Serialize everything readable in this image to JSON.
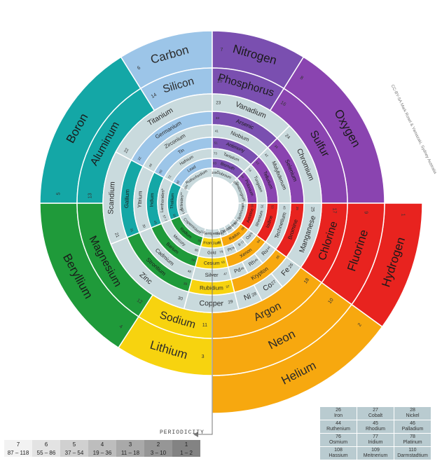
{
  "colors": {
    "group1": "#f7c10f",
    "group2": "#1f9a3a",
    "group13": "#14a7a6",
    "group14": "#9cc5e8",
    "group15": "#7a4fb0",
    "group16": "#8a44b0",
    "group17": "#e8231f",
    "group18": "#f7a80f",
    "transition": "#c9dadd",
    "ring_light": "#dfe9ea"
  },
  "rings": [
    {
      "id": "r1",
      "items": [
        {
          "symbol_name": "Hydrogen",
          "number": "1",
          "color": "#e8231f",
          "start": 90,
          "end": 126
        },
        {
          "symbol_name": "Helium",
          "number": "2",
          "color": "#f7a80f",
          "start": 126,
          "end": 180
        }
      ]
    },
    {
      "id": "r2",
      "items": [
        {
          "symbol_name": "Lithium",
          "number": "3",
          "color": "#f7d30f",
          "start": 180,
          "end": 213
        },
        {
          "symbol_name": "Beryllium",
          "number": "4",
          "color": "#1f9a3a",
          "start": 213,
          "end": 270
        },
        {
          "symbol_name": "Boron",
          "number": "5",
          "color": "#14a7a6",
          "start": 270,
          "end": 328
        },
        {
          "symbol_name": "Carbon",
          "number": "6",
          "color": "#9cc5e8",
          "start": 328,
          "end": 360
        },
        {
          "symbol_name": "Nitrogen",
          "number": "7",
          "color": "#7a4fb0",
          "start": 0,
          "end": 32
        },
        {
          "symbol_name": "Oxygen",
          "number": "8",
          "color": "#8a44b0",
          "start": 32,
          "end": 90
        },
        {
          "symbol_name": "Fluorine",
          "number": "9",
          "color": "#e8231f",
          "start": 90,
          "end": 126
        },
        {
          "symbol_name": "Neon",
          "number": "10",
          "color": "#f7a80f",
          "start": 126,
          "end": 180
        }
      ]
    },
    {
      "id": "r3",
      "items": [
        {
          "symbol_name": "Sodium",
          "number": "11",
          "color": "#f7d30f",
          "start": 180,
          "end": 213
        },
        {
          "symbol_name": "Magnesium",
          "number": "12",
          "color": "#1f9a3a",
          "start": 213,
          "end": 270
        },
        {
          "symbol_name": "Aluminum",
          "number": "13",
          "color": "#14a7a6",
          "start": 270,
          "end": 328
        },
        {
          "symbol_name": "Silicon",
          "number": "14",
          "color": "#9cc5e8",
          "start": 328,
          "end": 360
        },
        {
          "symbol_name": "Phosphorus",
          "number": "15",
          "color": "#7a4fb0",
          "start": 0,
          "end": 32
        },
        {
          "symbol_name": "Sulfur",
          "number": "16",
          "color": "#8a44b0",
          "start": 32,
          "end": 90
        },
        {
          "symbol_name": "Chlorine",
          "number": "17",
          "color": "#e8231f",
          "start": 90,
          "end": 126
        },
        {
          "symbol_name": "Argon",
          "number": "18",
          "color": "#f7a80f",
          "start": 126,
          "end": 180
        }
      ]
    },
    {
      "id": "r4",
      "items": [
        {
          "symbol_name": "Potassium",
          "number": "19",
          "color": "#f7d30f",
          "start": 180,
          "end": 213
        },
        {
          "symbol_name": "Calcium",
          "number": "20",
          "color": "#1f9a3a",
          "start": 213,
          "end": 248
        },
        {
          "symbol_name": "Scandium",
          "number": "21",
          "color": "#c9dadd",
          "start": 248,
          "end": 298
        },
        {
          "symbol_name": "Titanium",
          "number": "22",
          "color": "#c9dadd",
          "start": 298,
          "end": 360
        },
        {
          "symbol_name": "Vanadium",
          "number": "23",
          "color": "#c9dadd",
          "start": 0,
          "end": 45
        },
        {
          "symbol_name": "Chromium",
          "number": "24",
          "color": "#c9dadd",
          "start": 45,
          "end": 90
        },
        {
          "symbol_name": "Manganese",
          "number": "25",
          "color": "#c9dadd",
          "start": 90,
          "end": 126
        },
        {
          "symbol_name": "Fe",
          "number": "26",
          "color": "#c9dadd",
          "start": 126,
          "end": 140
        },
        {
          "symbol_name": "Co",
          "number": "27",
          "color": "#c9dadd",
          "start": 140,
          "end": 153
        },
        {
          "symbol_name": "Ni",
          "number": "28",
          "color": "#c9dadd",
          "start": 153,
          "end": 166
        },
        {
          "symbol_name": "Copper",
          "number": "29",
          "color": "#c9dadd",
          "start": 166,
          "end": 195
        },
        {
          "symbol_name": "Zinc",
          "number": "30",
          "color": "#c9dadd",
          "start": 195,
          "end": 248
        }
      ]
    },
    {
      "id": "r5",
      "items": [
        {
          "symbol_name": "Gallium",
          "number": "31",
          "color": "#14a7a6",
          "start": 248,
          "end": 298
        },
        {
          "symbol_name": "Germanium",
          "number": "32",
          "color": "#9cc5e8",
          "start": 298,
          "end": 360
        },
        {
          "symbol_name": "Arsenic",
          "number": "33",
          "color": "#7a4fb0",
          "start": 0,
          "end": 45
        },
        {
          "symbol_name": "Selenium",
          "number": "34",
          "color": "#8a44b0",
          "start": 45,
          "end": 90
        },
        {
          "symbol_name": "Bromine",
          "number": "35",
          "color": "#e8231f",
          "start": 90,
          "end": 126
        },
        {
          "symbol_name": "Krypton",
          "number": "36",
          "color": "#f7a80f",
          "start": 126,
          "end": 166
        },
        {
          "symbol_name": "Rubidium",
          "number": "37",
          "color": "#f7d30f",
          "start": 166,
          "end": 195
        },
        {
          "symbol_name": "Strontium",
          "number": "38",
          "color": "#1f9a3a",
          "start": 195,
          "end": 248
        }
      ]
    },
    {
      "id": "r6",
      "items": [
        {
          "symbol_name": "Yttrium",
          "number": "39",
          "color": "#c9dadd",
          "start": 248,
          "end": 298
        },
        {
          "symbol_name": "Zirconium",
          "number": "40",
          "color": "#c9dadd",
          "start": 298,
          "end": 360
        },
        {
          "symbol_name": "Niobium",
          "number": "41",
          "color": "#c9dadd",
          "start": 0,
          "end": 45
        },
        {
          "symbol_name": "Molybdenum",
          "number": "42",
          "color": "#c9dadd",
          "start": 45,
          "end": 90
        },
        {
          "symbol_name": "Technetium",
          "number": "43",
          "color": "#c9dadd",
          "start": 90,
          "end": 126
        },
        {
          "symbol_name": "Ru",
          "number": "44",
          "color": "#c9dadd",
          "start": 126,
          "end": 140
        },
        {
          "symbol_name": "Rh",
          "number": "45",
          "color": "#c9dadd",
          "start": 140,
          "end": 153
        },
        {
          "symbol_name": "Pd",
          "number": "46",
          "color": "#c9dadd",
          "start": 153,
          "end": 166
        },
        {
          "symbol_name": "Silver",
          "number": "47",
          "color": "#c9dadd",
          "start": 166,
          "end": 195
        },
        {
          "symbol_name": "Cadmium",
          "number": "48",
          "color": "#c9dadd",
          "start": 195,
          "end": 248
        }
      ]
    },
    {
      "id": "r7",
      "items": [
        {
          "symbol_name": "Indium",
          "number": "49",
          "color": "#14a7a6",
          "start": 248,
          "end": 298
        },
        {
          "symbol_name": "Tin",
          "number": "50",
          "color": "#9cc5e8",
          "start": 298,
          "end": 360
        },
        {
          "symbol_name": "Antimony",
          "number": "51",
          "color": "#7a4fb0",
          "start": 0,
          "end": 45
        },
        {
          "symbol_name": "Tellurium",
          "number": "52",
          "color": "#8a44b0",
          "start": 45,
          "end": 90
        },
        {
          "symbol_name": "Iodine",
          "number": "53",
          "color": "#e8231f",
          "start": 90,
          "end": 126
        },
        {
          "symbol_name": "Xenon",
          "number": "54",
          "color": "#f7a80f",
          "start": 126,
          "end": 166
        },
        {
          "symbol_name": "Cesium",
          "number": "55",
          "color": "#f7d30f",
          "start": 166,
          "end": 195
        },
        {
          "symbol_name": "Barium",
          "number": "56",
          "color": "#1f9a3a",
          "start": 195,
          "end": 248
        }
      ]
    },
    {
      "id": "r8",
      "items": [
        {
          "symbol_name": "Lanthanides*",
          "number": "57-71",
          "color": "#c9dadd",
          "start": 248,
          "end": 298
        },
        {
          "symbol_name": "Hafnium",
          "number": "72",
          "color": "#c9dadd",
          "start": 298,
          "end": 360
        },
        {
          "symbol_name": "Tantalum",
          "number": "73",
          "color": "#c9dadd",
          "start": 0,
          "end": 45
        },
        {
          "symbol_name": "Tungsten",
          "number": "74",
          "color": "#c9dadd",
          "start": 45,
          "end": 90
        },
        {
          "symbol_name": "Rhenium",
          "number": "75",
          "color": "#c9dadd",
          "start": 90,
          "end": 126
        },
        {
          "symbol_name": "Os",
          "number": "76",
          "color": "#c9dadd",
          "start": 126,
          "end": 140
        },
        {
          "symbol_name": "Ir",
          "number": "77",
          "color": "#c9dadd",
          "start": 140,
          "end": 153
        },
        {
          "symbol_name": "Pt",
          "number": "78",
          "color": "#c9dadd",
          "start": 153,
          "end": 166
        },
        {
          "symbol_name": "Gold",
          "number": "79",
          "color": "#c9dadd",
          "start": 166,
          "end": 195
        },
        {
          "symbol_name": "Mercury",
          "number": "80",
          "color": "#c9dadd",
          "start": 195,
          "end": 248
        }
      ]
    },
    {
      "id": "r9",
      "items": [
        {
          "symbol_name": "Thallium",
          "number": "81",
          "color": "#14a7a6",
          "start": 248,
          "end": 298
        },
        {
          "symbol_name": "Lead",
          "number": "82",
          "color": "#9cc5e8",
          "start": 298,
          "end": 360
        },
        {
          "symbol_name": "Bismuth",
          "number": "83",
          "color": "#7a4fb0",
          "start": 0,
          "end": 45
        },
        {
          "symbol_name": "Polonium",
          "number": "84",
          "color": "#8a44b0",
          "start": 45,
          "end": 90
        },
        {
          "symbol_name": "Astatine",
          "number": "85",
          "color": "#e8231f",
          "start": 90,
          "end": 126
        },
        {
          "symbol_name": "Radon",
          "number": "86",
          "color": "#f7a80f",
          "start": 126,
          "end": 166
        },
        {
          "symbol_name": "Francium",
          "number": "87",
          "color": "#f7d30f",
          "start": 166,
          "end": 195
        },
        {
          "symbol_name": "Radium",
          "number": "88",
          "color": "#1f9a3a",
          "start": 195,
          "end": 248
        }
      ]
    },
    {
      "id": "r10",
      "items": [
        {
          "symbol_name": "Actinides**",
          "number": "89-103",
          "color": "#c9dadd",
          "start": 248,
          "end": 298
        },
        {
          "symbol_name": "Rutherfordium",
          "number": "104",
          "color": "#c9dadd",
          "start": 298,
          "end": 360
        },
        {
          "symbol_name": "Dubnium",
          "number": "105",
          "color": "#c9dadd",
          "start": 0,
          "end": 45
        },
        {
          "symbol_name": "Seaborgium",
          "number": "106",
          "color": "#c9dadd",
          "start": 45,
          "end": 90
        },
        {
          "symbol_name": "Bohrium",
          "number": "107",
          "color": "#c9dadd",
          "start": 90,
          "end": 126
        },
        {
          "symbol_name": "Hs",
          "number": "108",
          "color": "#c9dadd",
          "start": 126,
          "end": 140
        },
        {
          "symbol_name": "Mt",
          "number": "109",
          "color": "#c9dadd",
          "start": 140,
          "end": 153
        },
        {
          "symbol_name": "Ds",
          "number": "110",
          "color": "#c9dadd",
          "start": 153,
          "end": 166
        },
        {
          "symbol_name": "Roentgenium",
          "number": "111",
          "color": "#c9dadd",
          "start": 166,
          "end": 195
        },
        {
          "symbol_name": "Copernicium",
          "number": "112",
          "color": "#c9dadd",
          "start": 195,
          "end": 248
        }
      ]
    }
  ],
  "periodicity_label": "PERIODICITY",
  "periods": {
    "numbers": [
      "7",
      "6",
      "5",
      "4",
      "3",
      "2",
      "1"
    ],
    "ranges": [
      "87 – 118",
      "55 – 86",
      "37 – 54",
      "19 – 36",
      "11 – 18",
      "3 – 10",
      "1 – 2"
    ],
    "shades": [
      "#f2f2f2",
      "#e3e3e3",
      "#d0d0d0",
      "#bdbdbd",
      "#a9a9a9",
      "#969696",
      "#838383"
    ]
  },
  "block_table": [
    [
      {
        "num": "26",
        "name": "Iron"
      },
      {
        "num": "27",
        "name": "Cobalt"
      },
      {
        "num": "28",
        "name": "Nickel"
      }
    ],
    [
      {
        "num": "44",
        "name": "Ruthenium"
      },
      {
        "num": "45",
        "name": "Rhodium"
      },
      {
        "num": "46",
        "name": "Palladium"
      }
    ],
    [
      {
        "num": "76",
        "name": "Osmium"
      },
      {
        "num": "77",
        "name": "Iridium"
      },
      {
        "num": "78",
        "name": "Platinum"
      }
    ],
    [
      {
        "num": "108",
        "name": "Hassium"
      },
      {
        "num": "109",
        "name": "Meitnerium"
      },
      {
        "num": "110",
        "name": "Darmstadtium"
      }
    ]
  ],
  "credit": "CC-BY-SA Mark Rosel & Yamazaki, Sydney Australia"
}
